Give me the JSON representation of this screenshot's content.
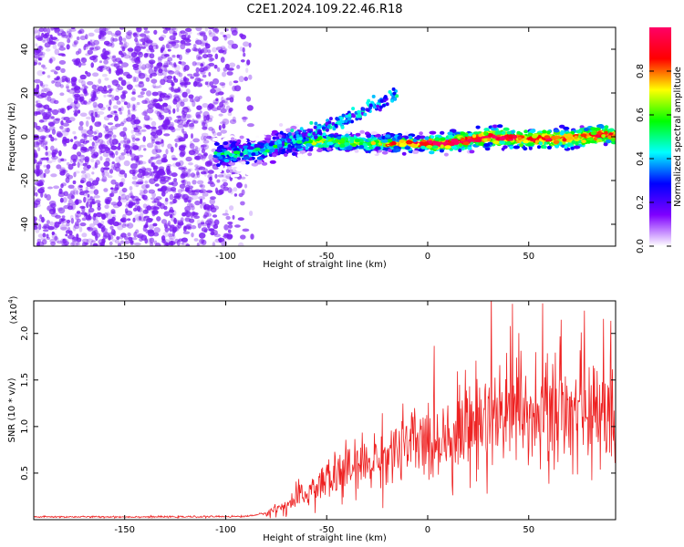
{
  "title": "C2E1.2024.109.22.46.R18",
  "chart_data": [
    {
      "type": "heatmap",
      "name": "spectrogram",
      "xlabel": "Height of straight line (km)",
      "ylabel": "Frequency (Hz)",
      "xlim": [
        -195,
        93
      ],
      "ylim": [
        -50,
        50
      ],
      "xticks": [
        -150,
        -100,
        -50,
        0,
        50
      ],
      "yticks": [
        -40,
        -20,
        0,
        20,
        40
      ],
      "colorbar": {
        "label": "Normalized spectral amplitude",
        "range": [
          0,
          1
        ],
        "ticks": [
          0.0,
          0.2,
          0.4,
          0.6,
          0.8
        ],
        "colors": [
          "#ffffff",
          "#7f00ff",
          "#0000ff",
          "#00ffff",
          "#00ff00",
          "#ffff00",
          "#ff0000",
          "#ff0066"
        ]
      },
      "ridge": {
        "description_free": true,
        "center_points": [
          [
            -100,
            -8
          ],
          [
            -80,
            -6
          ],
          [
            -70,
            -3
          ],
          [
            -50,
            -2
          ],
          [
            -30,
            -3
          ],
          [
            -10,
            -3
          ],
          [
            10,
            -3
          ],
          [
            30,
            0
          ],
          [
            50,
            -1
          ],
          [
            70,
            -1
          ],
          [
            90,
            1
          ]
        ]
      },
      "branch": {
        "center_points": [
          [
            -75,
            -3
          ],
          [
            -55,
            3
          ],
          [
            -40,
            8
          ],
          [
            -25,
            15
          ],
          [
            -15,
            20
          ]
        ]
      }
    },
    {
      "type": "line",
      "name": "snr",
      "xlabel": "Height of straight line (km)",
      "ylabel": "SNR (10 * v/v)",
      "y_multiplier": "(x10",
      "y_multiplier_exp": "4",
      "y_multiplier_close": ")",
      "xlim": [
        -195,
        93
      ],
      "ylim": [
        0,
        23500
      ],
      "xticks": [
        -150,
        -100,
        -50,
        0,
        50
      ],
      "yticks": [
        5000,
        10000,
        15000,
        20000
      ],
      "ytick_labels": [
        "0.5",
        "1.0",
        "1.5",
        "2.0"
      ],
      "color": "#ee2222",
      "envelope": [
        [
          -195,
          300
        ],
        [
          -120,
          300
        ],
        [
          -90,
          350
        ],
        [
          -80,
          700
        ],
        [
          -70,
          1500
        ],
        [
          -60,
          2800
        ],
        [
          -50,
          4200
        ],
        [
          -40,
          5200
        ],
        [
          -30,
          6000
        ],
        [
          -20,
          7000
        ],
        [
          -10,
          7800
        ],
        [
          0,
          8400
        ],
        [
          10,
          9200
        ],
        [
          20,
          10200
        ],
        [
          30,
          11000
        ],
        [
          40,
          11500
        ],
        [
          50,
          11200
        ],
        [
          60,
          11000
        ],
        [
          70,
          11500
        ],
        [
          80,
          11000
        ],
        [
          93,
          10500
        ]
      ]
    }
  ],
  "colors": {
    "line": "#ee2222",
    "frame": "#000000"
  }
}
